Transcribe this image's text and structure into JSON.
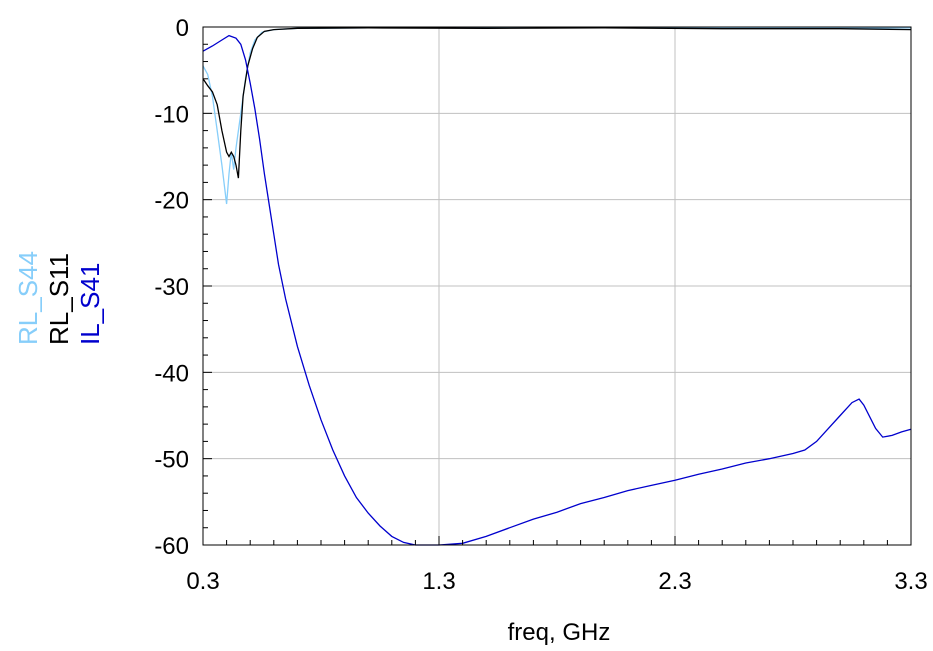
{
  "chart_data": {
    "type": "line",
    "xlabel": "freq, GHz",
    "xlim": [
      0.3,
      3.3
    ],
    "ylim": [
      -60,
      0
    ],
    "x_ticks": [
      0.3,
      1.3,
      2.3,
      3.3
    ],
    "x_tick_labels": [
      "0.3",
      "1.3",
      "2.3",
      "3.3"
    ],
    "y_ticks": [
      0,
      -10,
      -20,
      -30,
      -40,
      -50,
      -60
    ],
    "y_tick_labels": [
      "0",
      "-10",
      "-20",
      "-30",
      "-40",
      "-50",
      "-60"
    ],
    "grid": true,
    "legend_placement": "left, vertical",
    "series": [
      {
        "name": "RL_S44",
        "color": "#87cefa",
        "points": [
          [
            0.3,
            -4.5
          ],
          [
            0.32,
            -5.5
          ],
          [
            0.34,
            -8
          ],
          [
            0.36,
            -12
          ],
          [
            0.38,
            -16
          ],
          [
            0.4,
            -20.5
          ],
          [
            0.41,
            -17
          ],
          [
            0.42,
            -14.5
          ],
          [
            0.43,
            -16.5
          ],
          [
            0.44,
            -14
          ],
          [
            0.46,
            -10
          ],
          [
            0.48,
            -6
          ],
          [
            0.5,
            -3
          ],
          [
            0.52,
            -1.5
          ],
          [
            0.55,
            -0.6
          ],
          [
            0.6,
            -0.3
          ],
          [
            0.7,
            -0.15
          ],
          [
            1.0,
            -0.1
          ],
          [
            1.5,
            -0.1
          ],
          [
            2.0,
            -0.1
          ],
          [
            2.5,
            -0.1
          ],
          [
            3.0,
            -0.1
          ],
          [
            3.3,
            -0.1
          ]
        ]
      },
      {
        "name": "RL_S11",
        "color": "#000000",
        "points": [
          [
            0.3,
            -6
          ],
          [
            0.32,
            -6.8
          ],
          [
            0.34,
            -7.5
          ],
          [
            0.36,
            -9
          ],
          [
            0.38,
            -12
          ],
          [
            0.4,
            -14.5
          ],
          [
            0.41,
            -15
          ],
          [
            0.42,
            -14.5
          ],
          [
            0.43,
            -15
          ],
          [
            0.44,
            -16
          ],
          [
            0.45,
            -17.5
          ],
          [
            0.46,
            -12
          ],
          [
            0.47,
            -8
          ],
          [
            0.49,
            -4.5
          ],
          [
            0.51,
            -2.5
          ],
          [
            0.53,
            -1.2
          ],
          [
            0.56,
            -0.5
          ],
          [
            0.6,
            -0.3
          ],
          [
            0.7,
            -0.15
          ],
          [
            1.0,
            -0.1
          ],
          [
            1.5,
            -0.15
          ],
          [
            2.0,
            -0.1
          ],
          [
            2.5,
            -0.2
          ],
          [
            3.0,
            -0.2
          ],
          [
            3.3,
            -0.3
          ]
        ]
      },
      {
        "name": "IL_S41",
        "color": "#0000cd",
        "points": [
          [
            0.3,
            -2.8
          ],
          [
            0.34,
            -2.2
          ],
          [
            0.38,
            -1.5
          ],
          [
            0.41,
            -1
          ],
          [
            0.44,
            -1.3
          ],
          [
            0.46,
            -2
          ],
          [
            0.48,
            -3.8
          ],
          [
            0.5,
            -6.5
          ],
          [
            0.52,
            -9.5
          ],
          [
            0.54,
            -13
          ],
          [
            0.56,
            -17
          ],
          [
            0.58,
            -20.5
          ],
          [
            0.6,
            -24
          ],
          [
            0.62,
            -27.5
          ],
          [
            0.65,
            -31.5
          ],
          [
            0.7,
            -37
          ],
          [
            0.75,
            -41.5
          ],
          [
            0.8,
            -45.5
          ],
          [
            0.85,
            -49
          ],
          [
            0.9,
            -52
          ],
          [
            0.95,
            -54.5
          ],
          [
            1.0,
            -56.3
          ],
          [
            1.05,
            -57.8
          ],
          [
            1.1,
            -59
          ],
          [
            1.15,
            -59.7
          ],
          [
            1.2,
            -60
          ],
          [
            1.3,
            -60
          ],
          [
            1.4,
            -59.8
          ],
          [
            1.5,
            -59
          ],
          [
            1.6,
            -58
          ],
          [
            1.7,
            -57
          ],
          [
            1.8,
            -56.2
          ],
          [
            1.9,
            -55.2
          ],
          [
            2.0,
            -54.5
          ],
          [
            2.1,
            -53.7
          ],
          [
            2.2,
            -53.1
          ],
          [
            2.3,
            -52.5
          ],
          [
            2.4,
            -51.8
          ],
          [
            2.5,
            -51.2
          ],
          [
            2.6,
            -50.5
          ],
          [
            2.7,
            -50
          ],
          [
            2.8,
            -49.4
          ],
          [
            2.85,
            -49
          ],
          [
            2.9,
            -48
          ],
          [
            2.95,
            -46.5
          ],
          [
            3.0,
            -45
          ],
          [
            3.05,
            -43.5
          ],
          [
            3.08,
            -43.1
          ],
          [
            3.1,
            -43.8
          ],
          [
            3.15,
            -46.5
          ],
          [
            3.18,
            -47.5
          ],
          [
            3.22,
            -47.3
          ],
          [
            3.26,
            -46.9
          ],
          [
            3.3,
            -46.6
          ]
        ]
      }
    ]
  }
}
